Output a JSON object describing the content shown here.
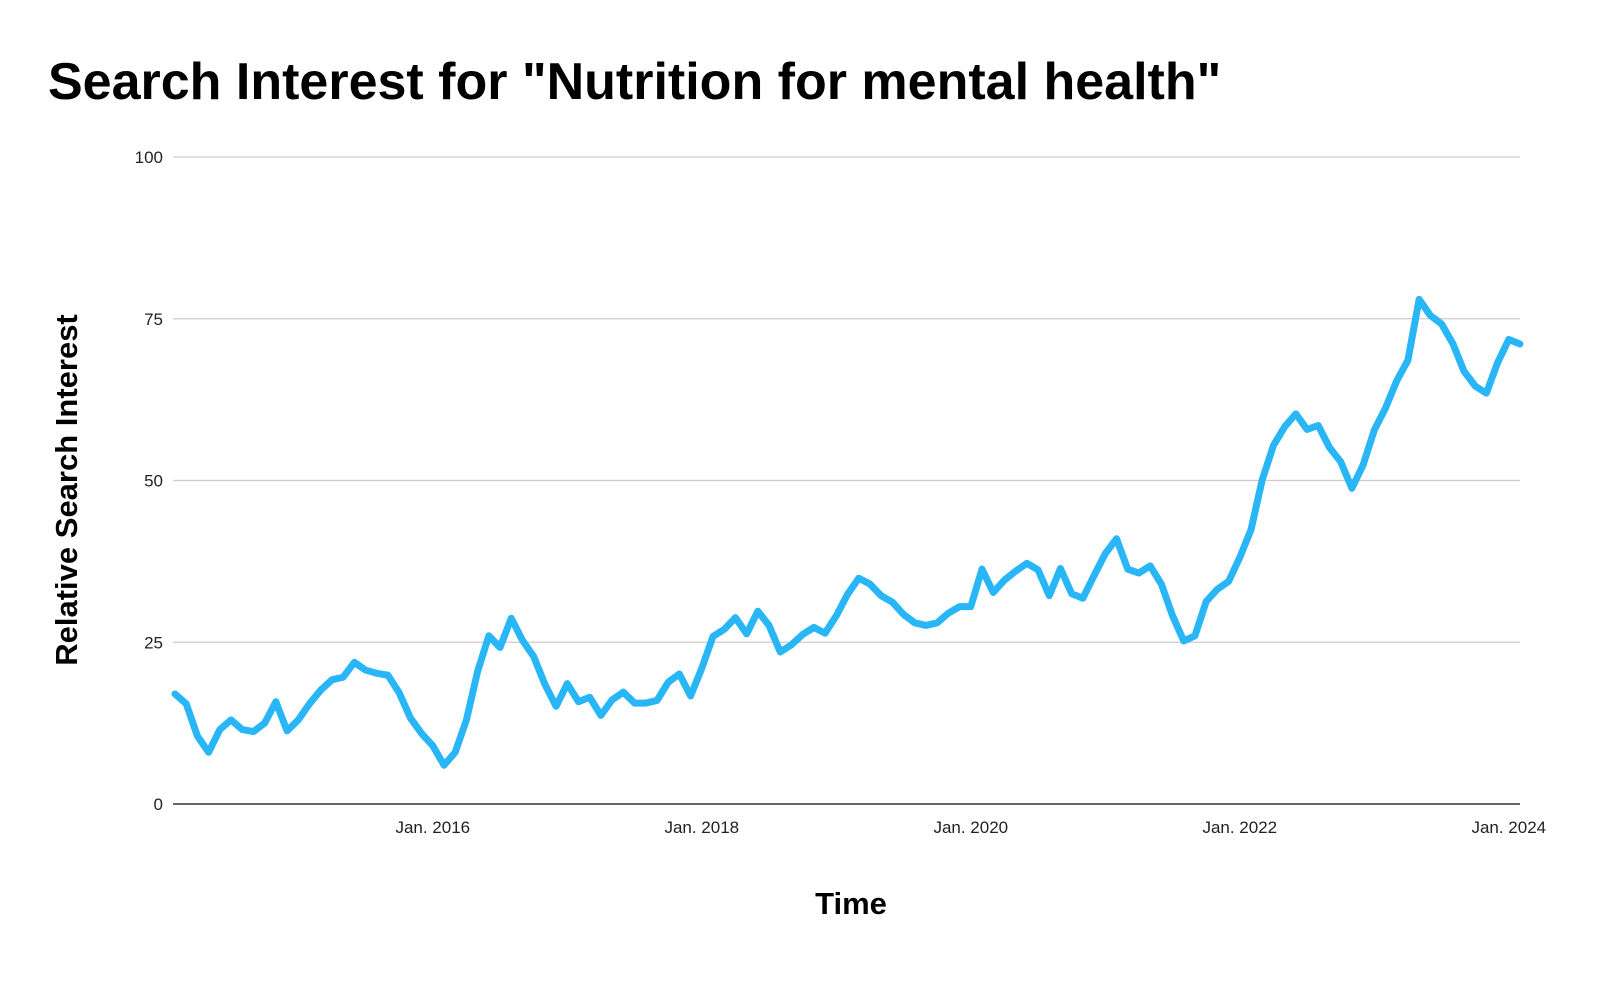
{
  "chart_data": {
    "type": "line",
    "title": "Search Interest for \"Nutrition for mental health\"",
    "xlabel": "Time",
    "ylabel": "Relative Search Interest",
    "ylim": [
      0,
      100
    ],
    "yticks": [
      "0",
      "25",
      "50",
      "75",
      "100"
    ],
    "xticks": [
      "Jan. 2016",
      "Jan. 2018",
      "Jan. 2020",
      "Jan. 2022",
      "Jan. 2024"
    ],
    "grid": true,
    "legend": "none",
    "line_color": "#29b6f6",
    "grid_color": "#cccccc",
    "axis_color": "#333333",
    "series": [
      {
        "x": [
          "2014-02",
          "2014-03",
          "2014-04",
          "2014-05",
          "2014-06",
          "2014-07",
          "2014-08",
          "2014-09",
          "2014-10",
          "2014-11",
          "2014-12",
          "2015-01",
          "2015-02",
          "2015-03",
          "2015-04",
          "2015-05",
          "2015-06",
          "2015-07",
          "2015-08",
          "2015-09",
          "2015-10",
          "2015-11",
          "2015-12",
          "2016-01",
          "2016-02",
          "2016-03",
          "2016-04",
          "2016-05",
          "2016-06",
          "2016-07",
          "2016-08",
          "2016-09",
          "2016-10",
          "2016-11",
          "2016-12",
          "2017-01",
          "2017-02",
          "2017-03",
          "2017-04",
          "2017-05",
          "2017-06",
          "2017-07",
          "2017-08",
          "2017-09",
          "2017-10",
          "2017-11",
          "2017-12",
          "2018-01",
          "2018-02",
          "2018-03",
          "2018-04",
          "2018-05",
          "2018-06",
          "2018-07",
          "2018-08",
          "2018-09",
          "2018-10",
          "2018-11",
          "2018-12",
          "2019-01",
          "2019-02",
          "2019-03",
          "2019-04",
          "2019-05",
          "2019-06",
          "2019-07",
          "2019-08",
          "2019-09",
          "2019-10",
          "2019-11",
          "2019-12",
          "2020-01",
          "2020-02",
          "2020-03",
          "2020-04",
          "2020-05",
          "2020-06",
          "2020-07",
          "2020-08",
          "2020-09",
          "2020-10",
          "2020-11",
          "2020-12",
          "2021-01",
          "2021-02",
          "2021-03",
          "2021-04",
          "2021-05",
          "2021-06",
          "2021-07",
          "2021-08",
          "2021-09",
          "2021-10",
          "2021-11",
          "2021-12",
          "2022-01",
          "2022-02",
          "2022-03",
          "2022-04",
          "2022-05",
          "2022-06",
          "2022-07",
          "2022-08",
          "2022-09",
          "2022-10",
          "2022-11",
          "2022-12",
          "2023-01",
          "2023-02",
          "2023-03",
          "2023-04",
          "2023-05",
          "2023-06",
          "2023-07",
          "2023-08",
          "2023-09",
          "2023-10",
          "2023-11",
          "2023-12",
          "2024-01",
          "2024-02"
        ],
        "values": [
          17,
          15.5,
          10.5,
          8,
          11.5,
          13,
          11.5,
          11.2,
          12.5,
          15.8,
          11.3,
          13,
          15.5,
          17.6,
          19.2,
          19.6,
          21.9,
          20.7,
          20.2,
          19.9,
          17.2,
          13.3,
          10.9,
          9,
          6,
          8,
          13,
          20.5,
          26,
          24.2,
          28.7,
          25.3,
          22.8,
          18.5,
          15.1,
          18.6,
          15.8,
          16.5,
          13.7,
          16.1,
          17.3,
          15.6,
          15.6,
          16,
          18.8,
          20.1,
          16.7,
          21,
          25.9,
          27,
          28.8,
          26.3,
          29.8,
          27.6,
          23.5,
          24.6,
          26.2,
          27.3,
          26.4,
          29.1,
          32.4,
          34.9,
          34,
          32.2,
          31.2,
          29.3,
          28,
          27.6,
          28,
          29.5,
          30.5,
          30.5,
          36.3,
          32.7,
          34.6,
          36,
          37.2,
          36.2,
          32.2,
          36.4,
          32.5,
          31.8,
          35.3,
          38.7,
          41,
          36.3,
          35.7,
          36.8,
          34,
          29.1,
          25.2,
          26,
          31.3,
          33.2,
          34.4,
          38.1,
          42.4,
          50.1,
          55.4,
          58.3,
          60.3,
          57.9,
          58.5,
          55.1,
          52.9,
          48.8,
          52.4,
          57.8,
          61.2,
          65.4,
          68.6,
          78,
          75.5,
          74.2,
          71.2,
          66.9,
          64.6,
          63.5,
          68.2,
          71.8,
          71.1
        ]
      }
    ]
  }
}
